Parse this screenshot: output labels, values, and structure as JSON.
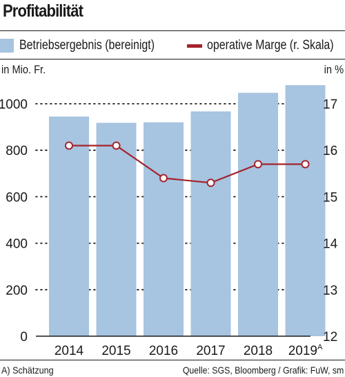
{
  "title": "Profitabilität",
  "legend": {
    "bar_label": "Betriebsergebnis (bereinigt)",
    "line_label": "operative Marge (r. Skala)"
  },
  "units": {
    "left": "in Mio. Fr.",
    "right": "in %"
  },
  "footnote": "A) Schätzung",
  "source": "Quelle: SGS, Bloomberg / Grafik: FuW, sm",
  "colors": {
    "bar": "#a7c4e0",
    "line": "#a5232c",
    "text": "#1a1a1a"
  },
  "chart_data": {
    "type": "bar",
    "title": "Profitabilität",
    "categories": [
      "2014",
      "2015",
      "2016",
      "2017",
      "2018",
      "2019"
    ],
    "category_superscripts": [
      "",
      "",
      "",
      "",
      "",
      "A"
    ],
    "series": [
      {
        "name": "Betriebsergebnis (bereinigt)",
        "type": "bar",
        "axis": "left",
        "values": [
          945,
          918,
          920,
          967,
          1047,
          1080
        ]
      },
      {
        "name": "operative Marge (r. Skala)",
        "type": "line",
        "axis": "right",
        "values": [
          16.1,
          16.1,
          15.4,
          15.3,
          15.7,
          15.7
        ]
      }
    ],
    "y_left": {
      "label": "in Mio. Fr.",
      "ylim": [
        0,
        1100
      ],
      "ticks": [
        0,
        200,
        400,
        600,
        800,
        1000
      ]
    },
    "y_right": {
      "label": "in %",
      "ylim": [
        12,
        17.5
      ],
      "ticks": [
        12,
        13,
        14,
        15,
        16,
        17
      ]
    },
    "grid": "dotted horizontal",
    "legend_position": "top"
  }
}
